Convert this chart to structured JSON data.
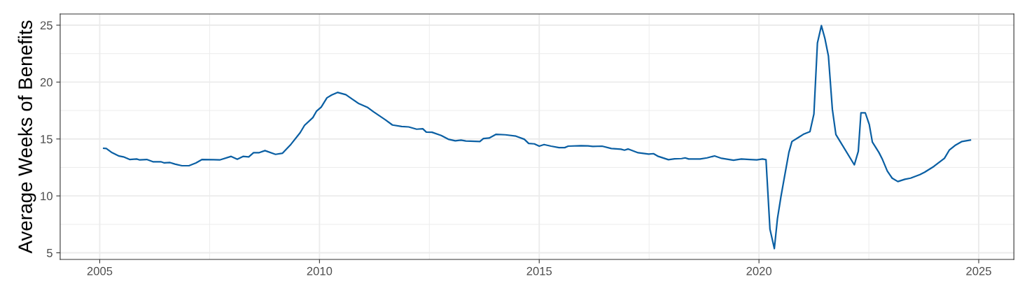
{
  "chart_data": {
    "type": "line",
    "ylabel": "Average Weeks of Benefits",
    "xlim": [
      2004.1,
      2025.8
    ],
    "xticks": [
      2005,
      2010,
      2015,
      2020,
      2025
    ],
    "ylim": [
      4.42,
      25.98
    ],
    "yticks": [
      5,
      10,
      15,
      20,
      25
    ],
    "grid": true,
    "marker": "none",
    "line_style": "solid",
    "series": [
      {
        "color": "#0a5fa3",
        "x": [
          2005.09,
          2005.15,
          2005.28,
          2005.44,
          2005.54,
          2005.68,
          2005.84,
          2005.91,
          2006.07,
          2006.21,
          2006.39,
          2006.47,
          2006.6,
          2006.71,
          2006.87,
          2007.03,
          2007.19,
          2007.33,
          2007.59,
          2007.73,
          2007.99,
          2008.13,
          2008.26,
          2008.39,
          2008.5,
          2008.63,
          2008.76,
          2009.0,
          2009.16,
          2009.35,
          2009.56,
          2009.66,
          2009.85,
          2009.93,
          2010.04,
          2010.17,
          2010.28,
          2010.41,
          2010.6,
          2010.76,
          2010.9,
          2011.1,
          2011.23,
          2011.5,
          2011.66,
          2011.87,
          2012.03,
          2012.21,
          2012.35,
          2012.43,
          2012.56,
          2012.77,
          2012.93,
          2013.09,
          2013.22,
          2013.33,
          2013.65,
          2013.73,
          2013.86,
          2014.02,
          2014.23,
          2014.47,
          2014.66,
          2014.76,
          2014.89,
          2015.0,
          2015.11,
          2015.27,
          2015.45,
          2015.58,
          2015.66,
          2015.95,
          2016.11,
          2016.22,
          2016.43,
          2016.64,
          2016.86,
          2016.94,
          2017.02,
          2017.25,
          2017.49,
          2017.6,
          2017.71,
          2017.94,
          2018.08,
          2018.24,
          2018.32,
          2018.4,
          2018.66,
          2018.82,
          2018.99,
          2019.15,
          2019.42,
          2019.6,
          2019.79,
          2019.95,
          2020.08,
          2020.16,
          2020.25,
          2020.35,
          2020.42,
          2020.5,
          2020.58,
          2020.68,
          2020.75,
          2020.9,
          2021.01,
          2021.16,
          2021.25,
          2021.33,
          2021.42,
          2021.5,
          2021.58,
          2021.67,
          2021.75,
          2022.17,
          2022.26,
          2022.32,
          2022.42,
          2022.51,
          2022.58,
          2022.73,
          2022.81,
          2022.92,
          2023.03,
          2023.16,
          2023.32,
          2023.45,
          2023.66,
          2023.77,
          2023.98,
          2024.22,
          2024.33,
          2024.46,
          2024.62,
          2024.81
        ],
        "values": [
          14.18,
          14.16,
          13.8,
          13.5,
          13.43,
          13.2,
          13.24,
          13.16,
          13.2,
          13.0,
          13.0,
          12.9,
          12.93,
          12.8,
          12.65,
          12.65,
          12.9,
          13.2,
          13.18,
          13.16,
          13.47,
          13.22,
          13.47,
          13.43,
          13.8,
          13.8,
          13.98,
          13.65,
          13.75,
          14.53,
          15.55,
          16.2,
          16.88,
          17.43,
          17.8,
          18.62,
          18.87,
          19.09,
          18.89,
          18.46,
          18.1,
          17.76,
          17.39,
          16.68,
          16.23,
          16.1,
          16.06,
          15.86,
          15.9,
          15.61,
          15.59,
          15.31,
          14.98,
          14.84,
          14.9,
          14.82,
          14.78,
          15.04,
          15.08,
          15.41,
          15.37,
          15.25,
          14.98,
          14.61,
          14.57,
          14.37,
          14.51,
          14.37,
          14.24,
          14.24,
          14.37,
          14.41,
          14.39,
          14.35,
          14.37,
          14.16,
          14.1,
          14.02,
          14.12,
          13.79,
          13.67,
          13.71,
          13.47,
          13.18,
          13.26,
          13.28,
          13.34,
          13.24,
          13.24,
          13.34,
          13.51,
          13.3,
          13.14,
          13.24,
          13.2,
          13.16,
          13.24,
          13.18,
          7.07,
          5.37,
          7.99,
          9.93,
          11.67,
          13.81,
          14.78,
          15.14,
          15.41,
          15.65,
          17.19,
          23.43,
          24.96,
          23.83,
          22.3,
          17.6,
          15.39,
          12.73,
          13.92,
          17.29,
          17.29,
          16.27,
          14.73,
          13.81,
          13.2,
          12.18,
          11.56,
          11.26,
          11.46,
          11.56,
          11.87,
          12.08,
          12.59,
          13.3,
          14.02,
          14.43,
          14.78,
          14.9
        ]
      }
    ]
  }
}
